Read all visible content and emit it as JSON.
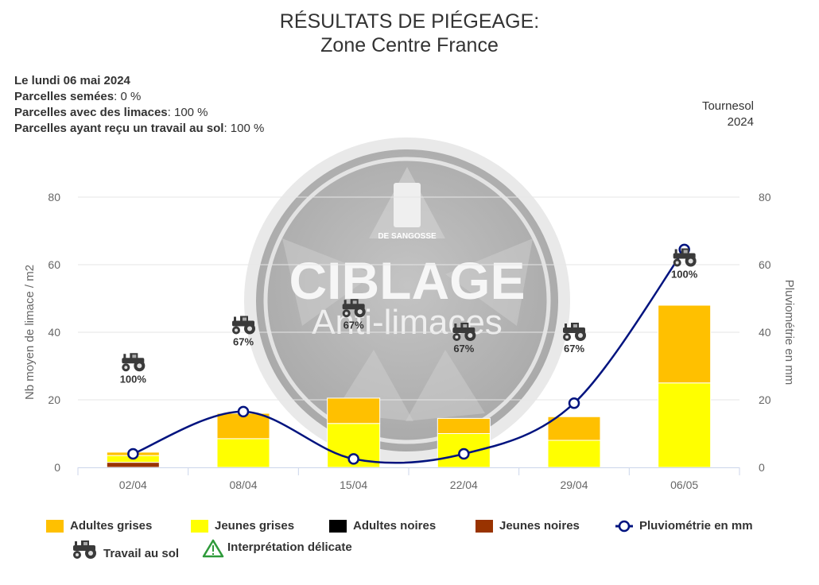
{
  "title": {
    "line1": "RÉSULTATS DE PIÉGEAGE:",
    "line2": "Zone Centre France"
  },
  "info": {
    "date": "Le lundi 06 mai 2024",
    "sown_label": "Parcelles semées",
    "sown_value": ": 0 %",
    "slugs_label": "Parcelles avec des limaces",
    "slugs_value": ": 100 %",
    "tillage_label": "Parcelles ayant reçu un travail au sol",
    "tillage_value": ": 100 %"
  },
  "crop": {
    "name": "Tournesol",
    "year": "2024"
  },
  "watermark": {
    "brand": "DE SANGOSSE",
    "line1": "CIBLAGE",
    "line2": "Anti-limaces"
  },
  "colors": {
    "adultes_grises": "#FFC000",
    "jeunes_grises": "#FFFF00",
    "adultes_noires": "#000000",
    "jeunes_noires": "#993300",
    "pluvio": "#00137F",
    "axis_text": "#666666",
    "grid": "#E6E6E6"
  },
  "chart_data": {
    "type": "bar",
    "categories": [
      "02/04",
      "08/04",
      "15/04",
      "22/04",
      "29/04",
      "06/05"
    ],
    "stacked": true,
    "series": [
      {
        "name": "Adultes grises",
        "type": "bar",
        "values": [
          1,
          7.5,
          7.5,
          4.5,
          7,
          23
        ]
      },
      {
        "name": "Jeunes grises",
        "type": "bar",
        "values": [
          2,
          8.5,
          13,
          10,
          8,
          25
        ]
      },
      {
        "name": "Adultes noires",
        "type": "bar",
        "values": [
          0,
          0,
          0,
          0,
          0,
          0
        ]
      },
      {
        "name": "Jeunes noires",
        "type": "bar",
        "values": [
          1.5,
          0,
          0,
          0,
          0,
          0
        ]
      },
      {
        "name": "Pluviométrie en mm",
        "type": "line",
        "axis": "right",
        "values": [
          4,
          16.5,
          2.5,
          4,
          19,
          64.5
        ]
      }
    ],
    "travail_au_sol": [
      "100%",
      "67%",
      "67%",
      "67%",
      "67%",
      "100%"
    ],
    "travail_au_sol_level": [
      31,
      42,
      47,
      40,
      40,
      62
    ],
    "ylabel": "Nb moyen de limace / m2",
    "y2label": "Pluviométrie en mm",
    "ylim": [
      0,
      80
    ],
    "y2lim": [
      0,
      80
    ],
    "yticks": [
      0,
      20,
      40,
      60,
      80
    ],
    "grid": true
  },
  "legend": {
    "items": [
      "Adultes grises",
      "Jeunes grises",
      "Adultes noires",
      "Jeunes noires",
      "Pluviométrie en mm"
    ],
    "tractor": "Travail au sol",
    "warning": "Interprétation délicate"
  }
}
